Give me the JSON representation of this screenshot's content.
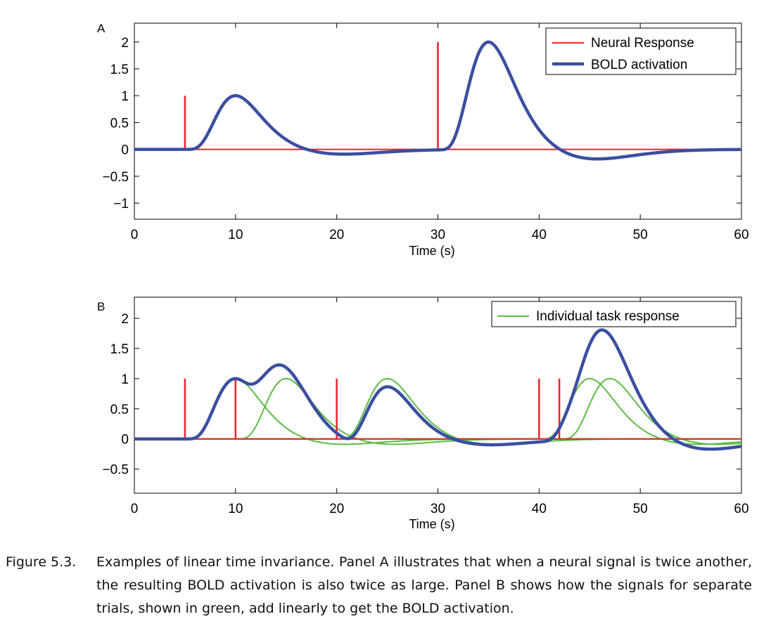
{
  "figure_label": "Figure 5.3.",
  "caption": "Examples of linear time invariance. Panel A illustrates that when a neural signal is twice another, the resulting BOLD activation is also twice as large. Panel B shows how the signals for separate trials, shown in green, add linearly to get the BOLD activation.",
  "colors": {
    "neural": "#e8242a",
    "bold": "#3a4fa0",
    "individual": "#5dbb46"
  },
  "chart_data": [
    {
      "type": "line",
      "panel_label": "A",
      "xlabel": "Time (s)",
      "ylabel": "",
      "xlim": [
        0,
        60
      ],
      "ylim": [
        -1.3,
        2.35
      ],
      "xticks": [
        0,
        10,
        20,
        30,
        40,
        50,
        60
      ],
      "xtick_labels": [
        "0",
        "10",
        "20",
        "30",
        "40",
        "50",
        "60"
      ],
      "yticks": [
        2,
        1.5,
        1,
        0.5,
        0,
        -0.5,
        -1
      ],
      "ytick_labels": [
        "2",
        "1.5",
        "1",
        "0.5",
        "0",
        "−0.5",
        "−1"
      ],
      "legend_position": "top-right",
      "neural_events": [
        {
          "t": 5,
          "amplitude": 1
        },
        {
          "t": 30,
          "amplitude": 2
        }
      ],
      "series": [
        {
          "name": "Neural Response",
          "kind": "stick",
          "color": "#e8242a"
        },
        {
          "name": "BOLD activation",
          "kind": "bold_sum",
          "color": "#3a4fa0"
        }
      ]
    },
    {
      "type": "line",
      "panel_label": "B",
      "xlabel": "Time (s)",
      "ylabel": "",
      "xlim": [
        0,
        60
      ],
      "ylim": [
        -0.9,
        2.35
      ],
      "xticks": [
        0,
        10,
        20,
        30,
        40,
        50,
        60
      ],
      "xtick_labels": [
        "0",
        "10",
        "20",
        "30",
        "40",
        "50",
        "60"
      ],
      "yticks": [
        2,
        1.5,
        1,
        0.5,
        0,
        -0.5
      ],
      "ytick_labels": [
        "2",
        "1.5",
        "1",
        "0.5",
        "0",
        "−0.5"
      ],
      "legend_position": "top-right",
      "neural_events": [
        {
          "t": 5,
          "amplitude": 1
        },
        {
          "t": 10,
          "amplitude": 1
        },
        {
          "t": 20,
          "amplitude": 1
        },
        {
          "t": 40,
          "amplitude": 1
        },
        {
          "t": 42,
          "amplitude": 1
        }
      ],
      "series": [
        {
          "name": "",
          "kind": "stick",
          "color": "#e8242a"
        },
        {
          "name": "Individual task response",
          "kind": "individual",
          "color": "#5dbb46"
        },
        {
          "name": "",
          "kind": "bold_sum",
          "color": "#3a4fa0"
        }
      ]
    }
  ]
}
